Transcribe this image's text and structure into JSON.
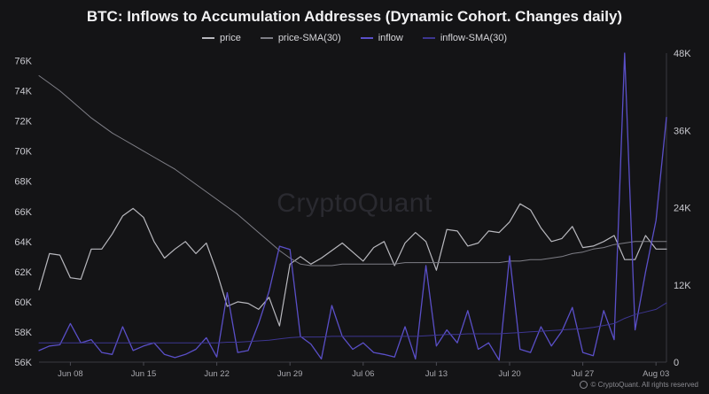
{
  "chart_data": {
    "type": "line",
    "title": "BTC: Inflows to Accumulation Addresses (Dynamic Cohort. Changes daily)",
    "x": [
      "Jun 05",
      "Jun 06",
      "Jun 07",
      "Jun 08",
      "Jun 09",
      "Jun 10",
      "Jun 11",
      "Jun 12",
      "Jun 13",
      "Jun 14",
      "Jun 15",
      "Jun 16",
      "Jun 17",
      "Jun 18",
      "Jun 19",
      "Jun 20",
      "Jun 21",
      "Jun 22",
      "Jun 23",
      "Jun 24",
      "Jun 25",
      "Jun 26",
      "Jun 27",
      "Jun 28",
      "Jun 29",
      "Jun 30",
      "Jul 01",
      "Jul 02",
      "Jul 03",
      "Jul 04",
      "Jul 05",
      "Jul 06",
      "Jul 07",
      "Jul 08",
      "Jul 09",
      "Jul 10",
      "Jul 11",
      "Jul 12",
      "Jul 13",
      "Jul 14",
      "Jul 15",
      "Jul 16",
      "Jul 17",
      "Jul 18",
      "Jul 19",
      "Jul 20",
      "Jul 21",
      "Jul 22",
      "Jul 23",
      "Jul 24",
      "Jul 25",
      "Jul 26",
      "Jul 27",
      "Jul 28",
      "Jul 29",
      "Jul 30",
      "Jul 31",
      "Aug 01",
      "Aug 02",
      "Aug 03",
      "Aug 04"
    ],
    "x_ticks": [
      "Jun 08",
      "Jun 15",
      "Jun 22",
      "Jun 29",
      "Jul 06",
      "Jul 13",
      "Jul 20",
      "Jul 27",
      "Aug 03"
    ],
    "y_left": {
      "ticks": [
        "56K",
        "58K",
        "60K",
        "62K",
        "64K",
        "66K",
        "68K",
        "70K",
        "72K",
        "74K",
        "76K"
      ],
      "min": 56000,
      "max": 76500
    },
    "y_right": {
      "ticks": [
        "0",
        "12K",
        "24K",
        "36K",
        "48K"
      ],
      "min": 0,
      "max": 48000
    },
    "series": [
      {
        "name": "price",
        "axis": "left",
        "color": "#b8b8be",
        "width": 1.2,
        "values": [
          60800,
          63200,
          63100,
          61600,
          61500,
          63500,
          63500,
          64500,
          65700,
          66200,
          65600,
          64000,
          62900,
          63500,
          64000,
          63200,
          63900,
          62000,
          59700,
          60000,
          59900,
          59500,
          60300,
          58400,
          62500,
          63000,
          62500,
          62900,
          63400,
          63900,
          63300,
          62700,
          63600,
          64000,
          62400,
          63900,
          64600,
          64000,
          62100,
          64800,
          64700,
          63700,
          63900,
          64700,
          64600,
          65300,
          66500,
          66100,
          64900,
          64000,
          64200,
          65000,
          63600,
          63700,
          64000,
          64400,
          62800,
          62800,
          64400,
          63500,
          63500
        ]
      },
      {
        "name": "price-SMA(30)",
        "axis": "left",
        "color": "#7e7e86",
        "width": 1.0,
        "values": [
          75000,
          74500,
          74000,
          73400,
          72800,
          72200,
          71700,
          71200,
          70800,
          70400,
          70000,
          69600,
          69200,
          68800,
          68300,
          67800,
          67300,
          66800,
          66300,
          65800,
          65200,
          64600,
          64000,
          63400,
          62900,
          62500,
          62400,
          62400,
          62400,
          62500,
          62500,
          62500,
          62500,
          62500,
          62500,
          62600,
          62600,
          62600,
          62600,
          62600,
          62600,
          62600,
          62600,
          62600,
          62600,
          62700,
          62700,
          62800,
          62800,
          62900,
          63000,
          63200,
          63300,
          63500,
          63600,
          63800,
          63900,
          64000,
          64000,
          64000,
          64000
        ]
      },
      {
        "name": "inflow",
        "axis": "right",
        "color": "#5a4fc8",
        "width": 1.3,
        "values": [
          1800,
          2500,
          2700,
          6000,
          3000,
          3500,
          1500,
          1200,
          5500,
          1800,
          2500,
          3000,
          1200,
          700,
          1200,
          2000,
          3800,
          800,
          10800,
          1500,
          1800,
          6000,
          11000,
          18000,
          17500,
          4000,
          2800,
          500,
          8800,
          4000,
          2000,
          3000,
          1500,
          1200,
          800,
          5500,
          500,
          15000,
          2500,
          5000,
          3000,
          8000,
          2000,
          3000,
          300,
          16500,
          2000,
          1500,
          5500,
          2500,
          4800,
          8500,
          1500,
          1000,
          8000,
          3500,
          48000,
          5000,
          14000,
          22000,
          38000
        ]
      },
      {
        "name": "inflow-SMA(30)",
        "axis": "right",
        "color": "#3d3691",
        "width": 1.0,
        "values": [
          3000,
          3000,
          3000,
          3000,
          3000,
          3000,
          3000,
          3000,
          3000,
          3000,
          3000,
          3000,
          3000,
          3000,
          3000,
          3000,
          3000,
          3000,
          3100,
          3100,
          3200,
          3300,
          3400,
          3600,
          3800,
          3900,
          3900,
          3900,
          4000,
          4000,
          4000,
          4000,
          4000,
          4000,
          4000,
          4000,
          4000,
          4100,
          4200,
          4300,
          4300,
          4400,
          4400,
          4400,
          4400,
          4500,
          4600,
          4700,
          4800,
          4900,
          5000,
          5100,
          5200,
          5400,
          5700,
          6000,
          6800,
          7400,
          7800,
          8200,
          9200
        ]
      }
    ],
    "grid": false,
    "legend_position": "top-center"
  },
  "footer": {
    "credit": "© CryptoQuant. All rights reserved"
  },
  "watermark": "CryptoQuant"
}
